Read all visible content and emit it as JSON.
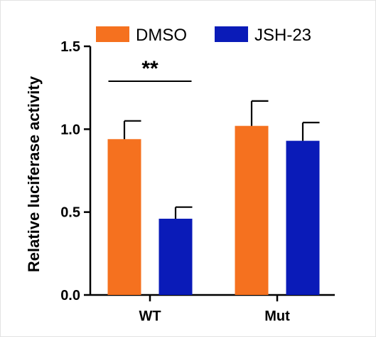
{
  "chart_data": {
    "type": "bar",
    "title": "",
    "xlabel": "",
    "ylabel": "Relative luciferase activity",
    "categories": [
      "WT",
      "Mut"
    ],
    "series": [
      {
        "name": "DMSO",
        "color": "#f5711f",
        "values": [
          0.94,
          1.02
        ],
        "errors": [
          0.11,
          0.15
        ]
      },
      {
        "name": "JSH-23",
        "color": "#0a1bb8",
        "values": [
          0.46,
          0.93
        ],
        "errors": [
          0.07,
          0.11
        ]
      }
    ],
    "ylim": [
      0,
      1.5
    ],
    "yticks": [
      "0.0",
      "0.5",
      "1.0",
      "1.5"
    ],
    "legend_position": "top",
    "grid": false,
    "annotations": [
      {
        "text": "**",
        "category": "WT",
        "between": [
          "DMSO",
          "JSH-23"
        ]
      }
    ]
  }
}
